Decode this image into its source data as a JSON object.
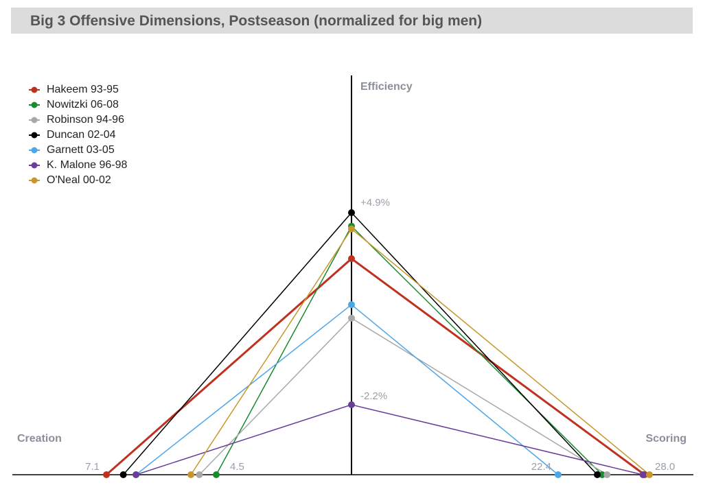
{
  "title": "Big 3 Offensive Dimensions, Postseason (normalized for big men)",
  "chart_data": {
    "type": "line",
    "title": "Big 3 Offensive Dimensions, Postseason (normalized for big men)",
    "axes": {
      "creation": {
        "label": "Creation",
        "tick_labels": [
          "7.1",
          "4.5"
        ],
        "range": [
          4.5,
          7.1
        ]
      },
      "scoring": {
        "label": "Scoring",
        "tick_labels": [
          "22.4",
          "28.0"
        ],
        "range": [
          22.4,
          28.0
        ]
      },
      "efficiency": {
        "label": "Efficiency",
        "tick_labels": [
          "+4.9%",
          "-2.2%"
        ],
        "range": [
          -2.2,
          4.9
        ]
      }
    },
    "legend_placement": "top-left",
    "series": [
      {
        "name": "Hakeem 93-95",
        "color": "#c0301f",
        "creation": 7.1,
        "scoring": 27.7,
        "efficiency": 3.2,
        "bold": true
      },
      {
        "name": "Nowitzki 06-08",
        "color": "#1a8a2e",
        "creation": 4.5,
        "scoring": 25.1,
        "efficiency": 4.4
      },
      {
        "name": "Robinson 94-96",
        "color": "#a8a8a8",
        "creation": 4.9,
        "scoring": 25.4,
        "efficiency": 1.0
      },
      {
        "name": "Duncan 02-04",
        "color": "#000000",
        "creation": 6.7,
        "scoring": 24.8,
        "efficiency": 4.9
      },
      {
        "name": "Garnett 03-05",
        "color": "#4da6e8",
        "creation": 6.4,
        "scoring": 22.4,
        "efficiency": 1.5
      },
      {
        "name": "K. Malone 96-98",
        "color": "#6a3d9a",
        "creation": 6.4,
        "scoring": 27.6,
        "efficiency": -2.2
      },
      {
        "name": "O'Neal 00-02",
        "color": "#c8962a",
        "creation": 5.1,
        "scoring": 28.0,
        "efficiency": 4.3
      }
    ]
  }
}
